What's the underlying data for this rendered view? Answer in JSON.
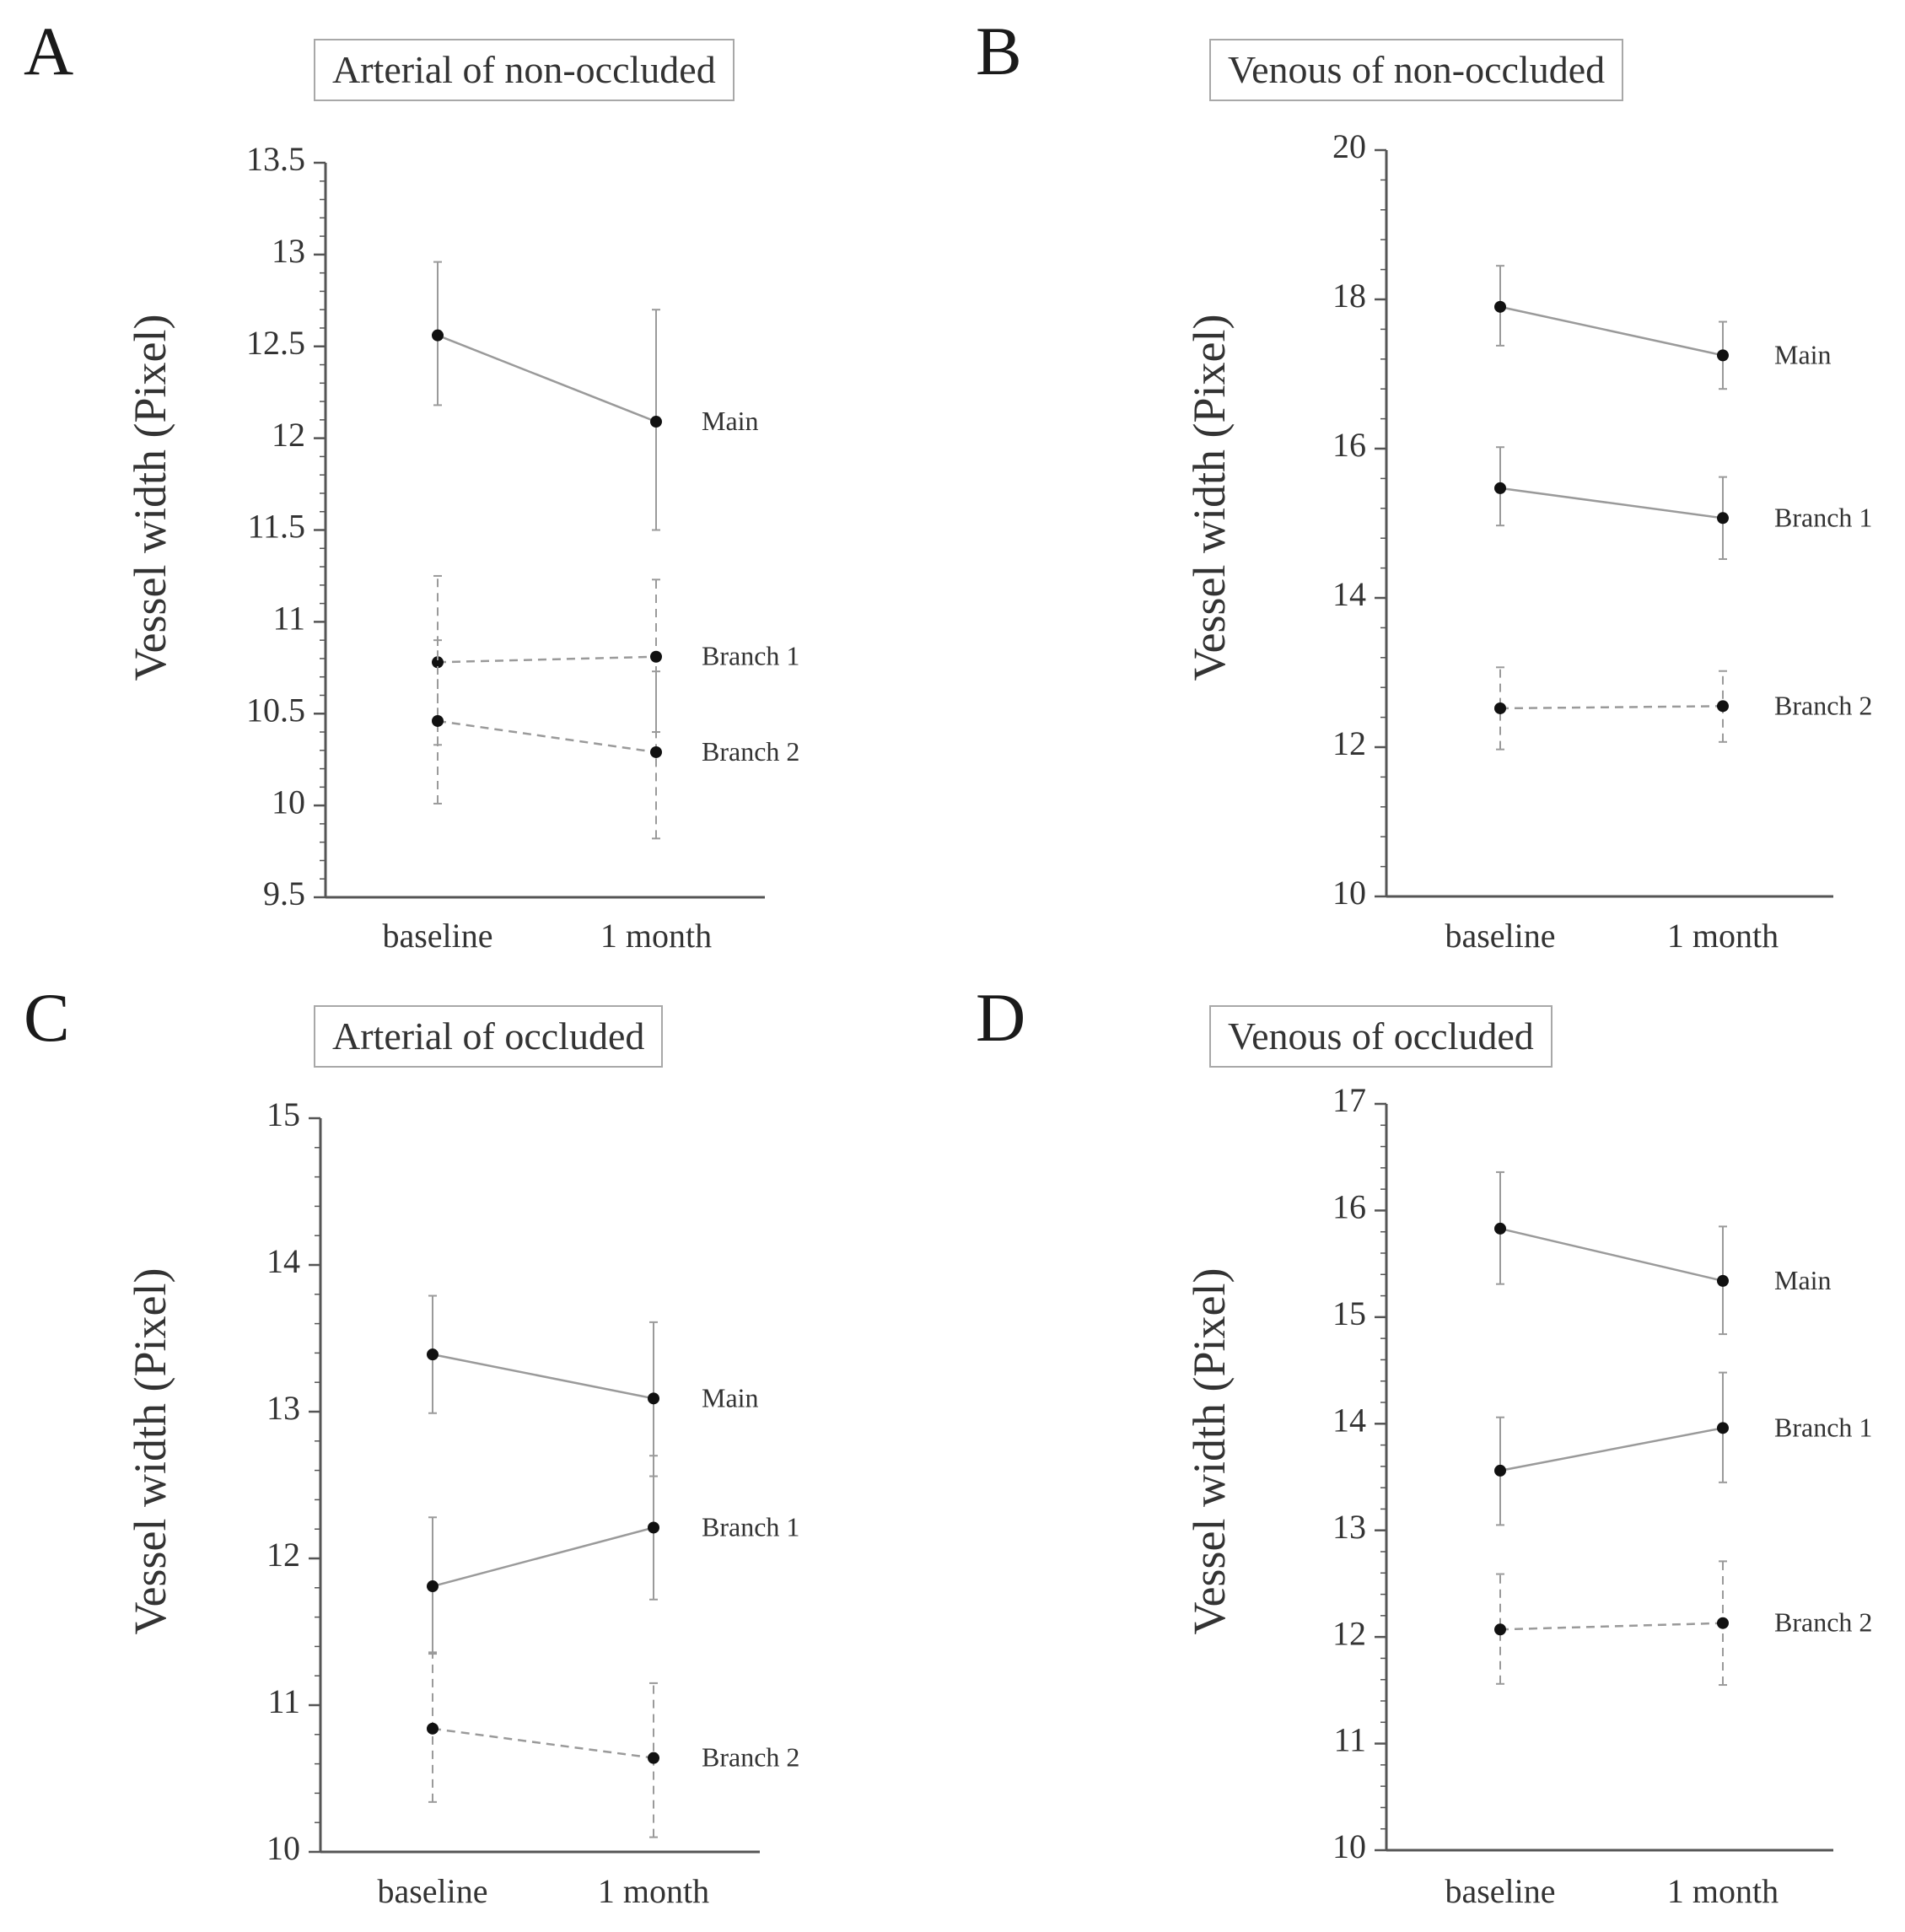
{
  "figure": {
    "panels": [
      {
        "letter": "A",
        "title": "Arterial of non-occluded"
      },
      {
        "letter": "B",
        "title": "Venous of non-occluded"
      },
      {
        "letter": "C",
        "title": "Arterial of occluded"
      },
      {
        "letter": "D",
        "title": "Venous of occluded"
      }
    ]
  },
  "colors": {
    "line": "#9a9a9a",
    "point": "#111111",
    "axis": "#555555",
    "text": "#333333"
  },
  "chart_data": [
    {
      "type": "line",
      "title": "Arterial of non-occluded",
      "panel": "A",
      "xlabel": "",
      "ylabel": "Vessel width (Pixel)",
      "categories": [
        "baseline",
        "1 month"
      ],
      "ylim": [
        9.5,
        13.5
      ],
      "yticks": [
        9.5,
        10,
        10.5,
        11,
        11.5,
        12,
        12.5,
        13,
        13.5
      ],
      "ytick_labels": [
        "9.5",
        "10",
        "10.5",
        "11",
        "11.5",
        "12",
        "12.5",
        "13",
        "13.5"
      ],
      "series": [
        {
          "name": "Main",
          "style": "solid",
          "values": [
            12.56,
            12.09
          ],
          "err_low": [
            12.18,
            11.5
          ],
          "err_high": [
            12.96,
            12.7
          ]
        },
        {
          "name": "Branch 1",
          "style": "dashed",
          "values": [
            10.78,
            10.81
          ],
          "err_low": [
            10.33,
            10.4
          ],
          "err_high": [
            11.25,
            11.23
          ]
        },
        {
          "name": "Branch 2",
          "style": "dashed",
          "values": [
            10.46,
            10.29
          ],
          "err_low": [
            10.01,
            9.82
          ],
          "err_high": [
            10.9,
            10.73
          ]
        }
      ]
    },
    {
      "type": "line",
      "title": "Venous of non-occluded",
      "panel": "B",
      "xlabel": "",
      "ylabel": "Vessel width (Pixel)",
      "categories": [
        "baseline",
        "1 month"
      ],
      "ylim": [
        10,
        20
      ],
      "yticks": [
        10,
        12,
        14,
        16,
        18,
        20
      ],
      "ytick_labels": [
        "10",
        "12",
        "14",
        "16",
        "18",
        "20"
      ],
      "series": [
        {
          "name": "Main",
          "style": "solid",
          "values": [
            17.9,
            17.25
          ],
          "err_low": [
            17.38,
            16.8
          ],
          "err_high": [
            18.45,
            17.7
          ]
        },
        {
          "name": "Branch 1",
          "style": "solid",
          "values": [
            15.47,
            15.07
          ],
          "err_low": [
            14.97,
            14.52
          ],
          "err_high": [
            16.02,
            15.62
          ]
        },
        {
          "name": "Branch 2",
          "style": "dashed",
          "values": [
            12.52,
            12.55
          ],
          "err_low": [
            11.97,
            12.07
          ],
          "err_high": [
            13.07,
            13.02
          ]
        }
      ]
    },
    {
      "type": "line",
      "title": "Arterial of occluded",
      "panel": "C",
      "xlabel": "",
      "ylabel": "Vessel width (Pixel)",
      "categories": [
        "baseline",
        "1 month"
      ],
      "ylim": [
        10,
        15
      ],
      "yticks": [
        10,
        11,
        12,
        13,
        14,
        15
      ],
      "ytick_labels": [
        "10",
        "11",
        "12",
        "13",
        "14",
        "15"
      ],
      "series": [
        {
          "name": "Main",
          "style": "solid",
          "values": [
            13.39,
            13.09
          ],
          "err_low": [
            12.99,
            12.56
          ],
          "err_high": [
            13.79,
            13.61
          ]
        },
        {
          "name": "Branch 1",
          "style": "solid",
          "values": [
            11.81,
            12.21
          ],
          "err_low": [
            11.35,
            11.72
          ],
          "err_high": [
            12.28,
            12.7
          ]
        },
        {
          "name": "Branch 2",
          "style": "dashed",
          "values": [
            10.84,
            10.64
          ],
          "err_low": [
            10.34,
            10.1
          ],
          "err_high": [
            11.36,
            11.15
          ]
        }
      ]
    },
    {
      "type": "line",
      "title": "Venous of occluded",
      "panel": "D",
      "xlabel": "",
      "ylabel": "Vessel width (Pixel)",
      "categories": [
        "baseline",
        "1 month"
      ],
      "ylim": [
        10,
        17
      ],
      "yticks": [
        10,
        11,
        12,
        13,
        14,
        15,
        16,
        17
      ],
      "ytick_labels": [
        "10",
        "11",
        "12",
        "13",
        "14",
        "15",
        "16",
        "17"
      ],
      "series": [
        {
          "name": "Main",
          "style": "solid",
          "values": [
            15.83,
            15.34
          ],
          "err_low": [
            15.31,
            14.84
          ],
          "err_high": [
            16.36,
            15.85
          ]
        },
        {
          "name": "Branch 1",
          "style": "solid",
          "values": [
            13.56,
            13.96
          ],
          "err_low": [
            13.05,
            13.45
          ],
          "err_high": [
            14.06,
            14.48
          ]
        },
        {
          "name": "Branch 2",
          "style": "dashed",
          "values": [
            12.07,
            12.13
          ],
          "err_low": [
            11.56,
            11.55
          ],
          "err_high": [
            12.59,
            12.71
          ]
        }
      ]
    }
  ]
}
